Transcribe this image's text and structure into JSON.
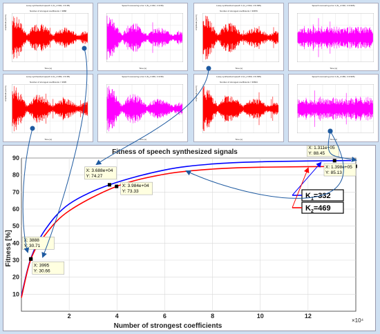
{
  "thumbnails": [
    {
      "title": "Lossy synthesized speech 1 (N_c=332, z=0.95)",
      "sub": "Number of strongest coefficients = 3888",
      "xlabel": "Time [s]",
      "ylabel": "Amplitude [norm]",
      "color": "#ff0000",
      "kind": "speech"
    },
    {
      "title": "Speech recovering error 1 (N_c=332, z=0.95)",
      "sub": "",
      "xlabel": "Time [s]",
      "ylabel": "",
      "color": "#ff00ff",
      "kind": "speech"
    },
    {
      "title": "Lossy synthesized speech 1 (N_c=332, z=0.995)",
      "sub": "Number of strongest coefficients = 36879",
      "xlabel": "Time [s]",
      "ylabel": "Amplitude [norm]",
      "color": "#ff0000",
      "kind": "speech"
    },
    {
      "title": "Speech recovering error 1 (N_c=332, z=0.995)",
      "sub": "",
      "xlabel": "Time [s]",
      "ylabel": "",
      "color": "#ff00ff",
      "kind": "noise"
    },
    {
      "title": "Lossy synthesized speech 2 (N_c=469, z=0.95)",
      "sub": "Number of strongest coefficients = 3995",
      "xlabel": "Time [s]",
      "ylabel": "Amplitude [norm]",
      "color": "#ff0000",
      "kind": "speech"
    },
    {
      "title": "Speech recovering error 2 (N_c=469, z=0.95)",
      "sub": "",
      "xlabel": "Time [s]",
      "ylabel": "",
      "color": "#ff00ff",
      "kind": "speech"
    },
    {
      "title": "Lossy synthesized speech 2 (N_c=469, z=0.995)",
      "sub": "Number of strongest coefficients = 39844",
      "xlabel": "Time [s]",
      "ylabel": "Amplitude [norm]",
      "color": "#ff0000",
      "kind": "speech"
    },
    {
      "title": "Speech recovering error 2 (N_c=469, z=0.995)",
      "sub": "",
      "xlabel": "Time [s]",
      "ylabel": "",
      "color": "#ff00ff",
      "kind": "noise"
    }
  ],
  "chart_data": {
    "type": "line",
    "title": "Fitness of speech synthesized signals",
    "xlabel": "Number of strongest coefficients",
    "ylabel": "Fitness [%]",
    "x_multiplier": "×10⁴",
    "xlim": [
      0,
      140000
    ],
    "ylim": [
      0,
      90
    ],
    "xticks": [
      2,
      4,
      6,
      8,
      10,
      12
    ],
    "xtick_values": [
      20000,
      40000,
      60000,
      80000,
      100000,
      120000
    ],
    "yticks": [
      10,
      20,
      30,
      40,
      50,
      60,
      70,
      80,
      90
    ],
    "grid": true,
    "series": [
      {
        "name": "K",
        "sub": "1",
        "value_label": "=332",
        "color": "#0000ff",
        "asymptote": 88.45,
        "x": [
          0,
          3888,
          10000,
          20000,
          36880,
          60000,
          80000,
          100000,
          131100,
          138000
        ],
        "y": [
          9,
          30.71,
          48,
          63,
          74.27,
          83,
          86.5,
          87.8,
          88.45,
          88.5
        ]
      },
      {
        "name": "K",
        "sub": "2",
        "value_label": "=469",
        "color": "#ff0000",
        "asymptote": 85.13,
        "x": [
          0,
          3995,
          10000,
          20000,
          39840,
          60000,
          80000,
          100000,
          139800
        ],
        "y": [
          8,
          30.66,
          45,
          59,
          73.33,
          80.5,
          83.5,
          84.6,
          85.13
        ]
      }
    ],
    "datatips": [
      {
        "lines": [
          "X: 3888",
          "Y: 30.71"
        ],
        "x": 3888,
        "y": 30.71,
        "series": 0
      },
      {
        "lines": [
          "X: 3995",
          "Y: 30.66"
        ],
        "x": 3995,
        "y": 30.66,
        "series": 1
      },
      {
        "lines": [
          "X: 3.688e+04",
          "Y: 74.27"
        ],
        "x": 36880,
        "y": 74.27,
        "series": 0
      },
      {
        "lines": [
          "X: 3.984e+04",
          "Y: 73.33"
        ],
        "x": 39840,
        "y": 73.33,
        "series": 1
      },
      {
        "lines": [
          "X: 1.311e+05",
          "Y: 88.45"
        ],
        "x": 131100,
        "y": 88.45,
        "series": 0
      },
      {
        "lines": [
          "X: 1.398e+05",
          "Y: 85.13"
        ],
        "x": 139800,
        "y": 85.13,
        "series": 1
      }
    ]
  }
}
